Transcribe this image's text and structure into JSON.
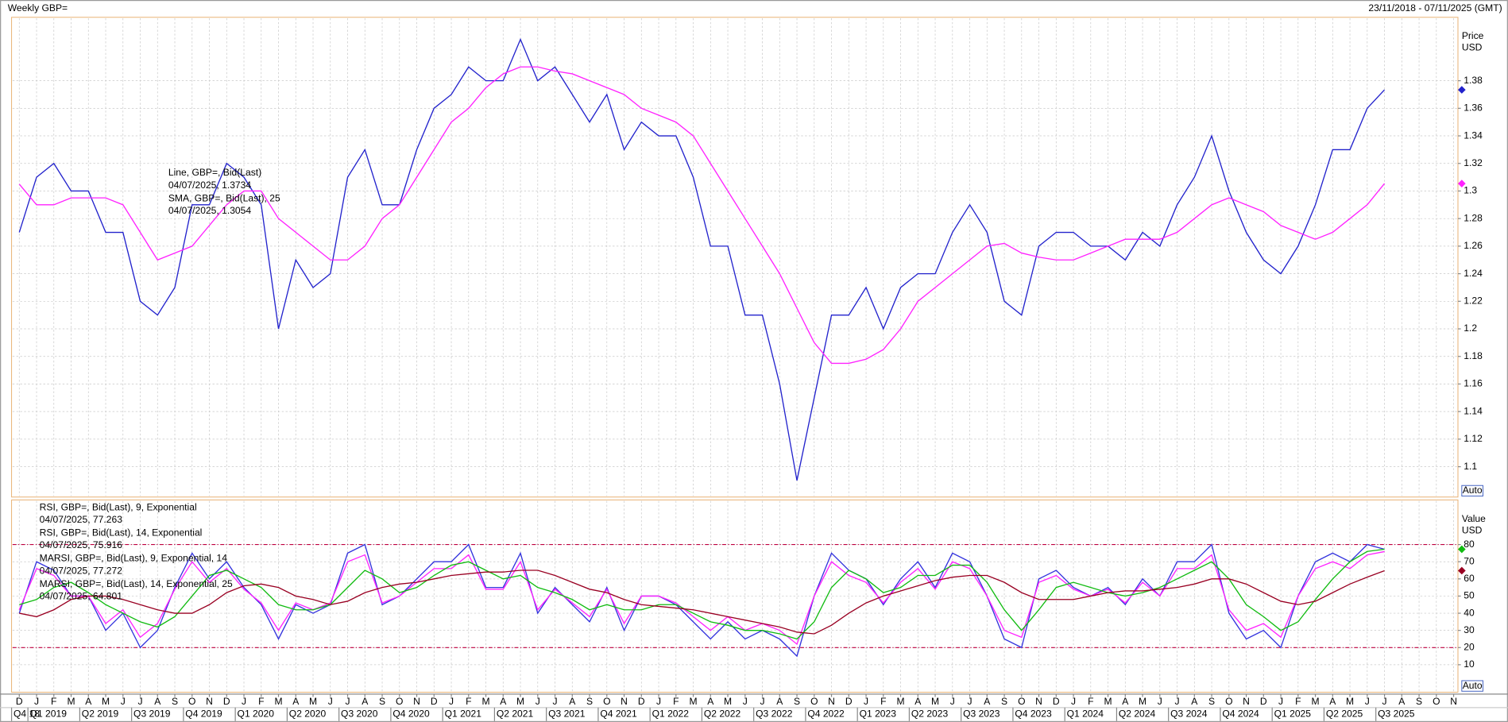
{
  "header": {
    "title": "Weekly GBP=",
    "range": "23/11/2018 - 07/11/2025 (GMT)"
  },
  "auto_label": "Auto",
  "x_axis": {
    "months": [
      "D",
      "J",
      "F",
      "M",
      "A",
      "M",
      "J",
      "J",
      "A",
      "S",
      "O",
      "N",
      "D",
      "J",
      "F",
      "M",
      "A",
      "M",
      "J",
      "J",
      "A",
      "S",
      "O",
      "N",
      "D",
      "J",
      "F",
      "M",
      "A",
      "M",
      "J",
      "J",
      "A",
      "S",
      "O",
      "N",
      "D",
      "J",
      "F",
      "M",
      "A",
      "M",
      "J",
      "J",
      "A",
      "S",
      "O",
      "N",
      "D",
      "J",
      "F",
      "M",
      "A",
      "M",
      "J",
      "J",
      "A",
      "S",
      "O",
      "N",
      "D",
      "J",
      "F",
      "M",
      "A",
      "M",
      "J",
      "J",
      "A",
      "S",
      "O",
      "N",
      "D",
      "J",
      "F",
      "M",
      "A",
      "M",
      "J",
      "J",
      "A",
      "S",
      "O",
      "N"
    ],
    "quarters": [
      "Q4 18",
      "Q1 2019",
      "Q2 2019",
      "Q3 2019",
      "Q4 2019",
      "Q1 2020",
      "Q2 2020",
      "Q3 2020",
      "Q4 2020",
      "Q1 2021",
      "Q2 2021",
      "Q3 2021",
      "Q4 2021",
      "Q1 2022",
      "Q2 2022",
      "Q3 2022",
      "Q4 2022",
      "Q1 2023",
      "Q2 2023",
      "Q3 2023",
      "Q4 2023",
      "Q1 2024",
      "Q2 2024",
      "Q3 2024",
      "Q4 2024",
      "Q1 2025",
      "Q2 2025",
      "Q3 2025"
    ]
  },
  "chart_data": [
    {
      "type": "line",
      "axis_label": "Price",
      "unit": "USD",
      "ylim": [
        1.078,
        1.426
      ],
      "yticks": [
        1.1,
        1.12,
        1.14,
        1.16,
        1.18,
        1.2,
        1.22,
        1.24,
        1.26,
        1.28,
        1.3,
        1.32,
        1.34,
        1.36,
        1.38
      ],
      "grid": true,
      "series": [
        {
          "name": "Line, GBP=, Bid(Last)",
          "detail": "04/07/2025, 1.3734",
          "color": "#2222cc",
          "marker": true,
          "values": [
            1.27,
            1.31,
            1.32,
            1.3,
            1.3,
            1.27,
            1.27,
            1.22,
            1.21,
            1.23,
            1.29,
            1.29,
            1.32,
            1.31,
            1.29,
            1.2,
            1.25,
            1.23,
            1.24,
            1.31,
            1.33,
            1.29,
            1.29,
            1.33,
            1.36,
            1.37,
            1.39,
            1.38,
            1.38,
            1.41,
            1.38,
            1.39,
            1.37,
            1.35,
            1.37,
            1.33,
            1.35,
            1.34,
            1.34,
            1.31,
            1.26,
            1.26,
            1.21,
            1.21,
            1.16,
            1.09,
            1.15,
            1.21,
            1.21,
            1.23,
            1.2,
            1.23,
            1.24,
            1.24,
            1.27,
            1.29,
            1.27,
            1.22,
            1.21,
            1.26,
            1.27,
            1.27,
            1.26,
            1.26,
            1.25,
            1.27,
            1.26,
            1.29,
            1.31,
            1.34,
            1.3,
            1.27,
            1.25,
            1.24,
            1.26,
            1.29,
            1.33,
            1.33,
            1.36,
            1.3734,
            null,
            null,
            null,
            null
          ]
        },
        {
          "name": "SMA, GBP=, Bid(Last), 25",
          "detail": "04/07/2025, 1.3054",
          "color": "#ff22ff",
          "marker": true,
          "values": [
            1.305,
            1.29,
            1.29,
            1.295,
            1.295,
            1.295,
            1.29,
            1.27,
            1.25,
            1.255,
            1.26,
            1.275,
            1.29,
            1.3,
            1.3,
            1.28,
            1.27,
            1.26,
            1.25,
            1.25,
            1.26,
            1.28,
            1.29,
            1.31,
            1.33,
            1.35,
            1.36,
            1.375,
            1.385,
            1.39,
            1.39,
            1.387,
            1.385,
            1.38,
            1.375,
            1.37,
            1.36,
            1.355,
            1.35,
            1.34,
            1.32,
            1.3,
            1.28,
            1.26,
            1.24,
            1.215,
            1.19,
            1.175,
            1.175,
            1.178,
            1.185,
            1.2,
            1.22,
            1.23,
            1.24,
            1.25,
            1.26,
            1.262,
            1.255,
            1.252,
            1.25,
            1.25,
            1.255,
            1.26,
            1.265,
            1.265,
            1.265,
            1.27,
            1.28,
            1.29,
            1.295,
            1.29,
            1.285,
            1.275,
            1.27,
            1.265,
            1.27,
            1.28,
            1.29,
            1.3054,
            null,
            null,
            null,
            null
          ]
        }
      ]
    },
    {
      "type": "line",
      "axis_label": "Value",
      "unit": "USD",
      "ylim": [
        -6,
        106
      ],
      "yticks": [
        10,
        20,
        30,
        40,
        50,
        60,
        70,
        80
      ],
      "grid": true,
      "reference_lines": [
        80,
        20
      ],
      "reference_color": "#c00040",
      "series": [
        {
          "name": "RSI, GBP=, Bid(Last), 9, Exponential",
          "detail": "04/07/2025, 77.263",
          "color": "#3333dd",
          "marker": false,
          "values": [
            40,
            70,
            65,
            50,
            50,
            30,
            40,
            20,
            30,
            55,
            75,
            60,
            70,
            55,
            45,
            25,
            45,
            40,
            45,
            75,
            80,
            45,
            50,
            60,
            70,
            70,
            80,
            55,
            55,
            75,
            40,
            55,
            45,
            35,
            55,
            30,
            50,
            50,
            45,
            35,
            25,
            35,
            25,
            30,
            25,
            15,
            50,
            75,
            65,
            60,
            45,
            60,
            70,
            55,
            75,
            70,
            50,
            25,
            20,
            60,
            65,
            55,
            50,
            55,
            45,
            60,
            50,
            70,
            70,
            80,
            40,
            25,
            30,
            20,
            50,
            70,
            75,
            70,
            80,
            77.263,
            null,
            null,
            null,
            null
          ]
        },
        {
          "name": "RSI, GBP=, Bid(Last), 14, Exponential",
          "detail": "04/07/2025, 75.916",
          "color": "#ff22ff",
          "marker": false,
          "values": [
            42,
            66,
            62,
            50,
            50,
            34,
            42,
            26,
            34,
            54,
            70,
            58,
            66,
            54,
            46,
            30,
            46,
            42,
            46,
            70,
            74,
            46,
            50,
            58,
            66,
            66,
            74,
            54,
            54,
            70,
            42,
            54,
            46,
            38,
            54,
            34,
            50,
            50,
            46,
            38,
            30,
            38,
            30,
            34,
            30,
            22,
            50,
            70,
            62,
            58,
            46,
            58,
            66,
            54,
            70,
            66,
            50,
            30,
            26,
            58,
            62,
            54,
            50,
            54,
            46,
            58,
            50,
            66,
            66,
            74,
            42,
            30,
            34,
            26,
            50,
            66,
            70,
            66,
            74,
            75.916,
            null,
            null,
            null,
            null
          ]
        },
        {
          "name": "MARSI, GBP=, Bid(Last), 9, Exponential, 14",
          "detail": "04/07/2025, 77.272",
          "color": "#11bb11",
          "marker": true,
          "values": [
            45,
            48,
            55,
            58,
            52,
            45,
            40,
            35,
            32,
            38,
            50,
            62,
            65,
            60,
            55,
            45,
            42,
            42,
            45,
            55,
            65,
            60,
            52,
            55,
            62,
            68,
            70,
            65,
            60,
            62,
            55,
            52,
            48,
            42,
            45,
            42,
            42,
            45,
            45,
            40,
            35,
            33,
            30,
            30,
            28,
            25,
            35,
            55,
            65,
            60,
            52,
            55,
            62,
            62,
            68,
            68,
            58,
            42,
            30,
            42,
            55,
            58,
            55,
            52,
            50,
            52,
            55,
            60,
            65,
            70,
            60,
            45,
            38,
            30,
            35,
            48,
            60,
            70,
            76,
            77.272,
            null,
            null,
            null,
            null
          ]
        },
        {
          "name": "MARSI, GBP=, Bid(Last), 14, Exponential, 25",
          "detail": "04/07/2025, 64.801",
          "color": "#990022",
          "marker": true,
          "values": [
            40,
            38,
            42,
            48,
            50,
            50,
            48,
            45,
            42,
            40,
            40,
            45,
            52,
            56,
            57,
            55,
            50,
            48,
            45,
            47,
            52,
            55,
            57,
            58,
            60,
            62,
            63,
            64,
            64,
            65,
            65,
            62,
            58,
            54,
            52,
            48,
            45,
            44,
            43,
            42,
            40,
            38,
            36,
            34,
            32,
            29,
            28,
            33,
            40,
            46,
            50,
            53,
            56,
            59,
            61,
            62,
            62,
            58,
            52,
            48,
            48,
            48,
            50,
            52,
            53,
            53,
            54,
            55,
            57,
            60,
            60,
            57,
            52,
            47,
            45,
            47,
            52,
            57,
            61,
            64.801,
            null,
            null,
            null,
            null
          ]
        }
      ]
    }
  ]
}
